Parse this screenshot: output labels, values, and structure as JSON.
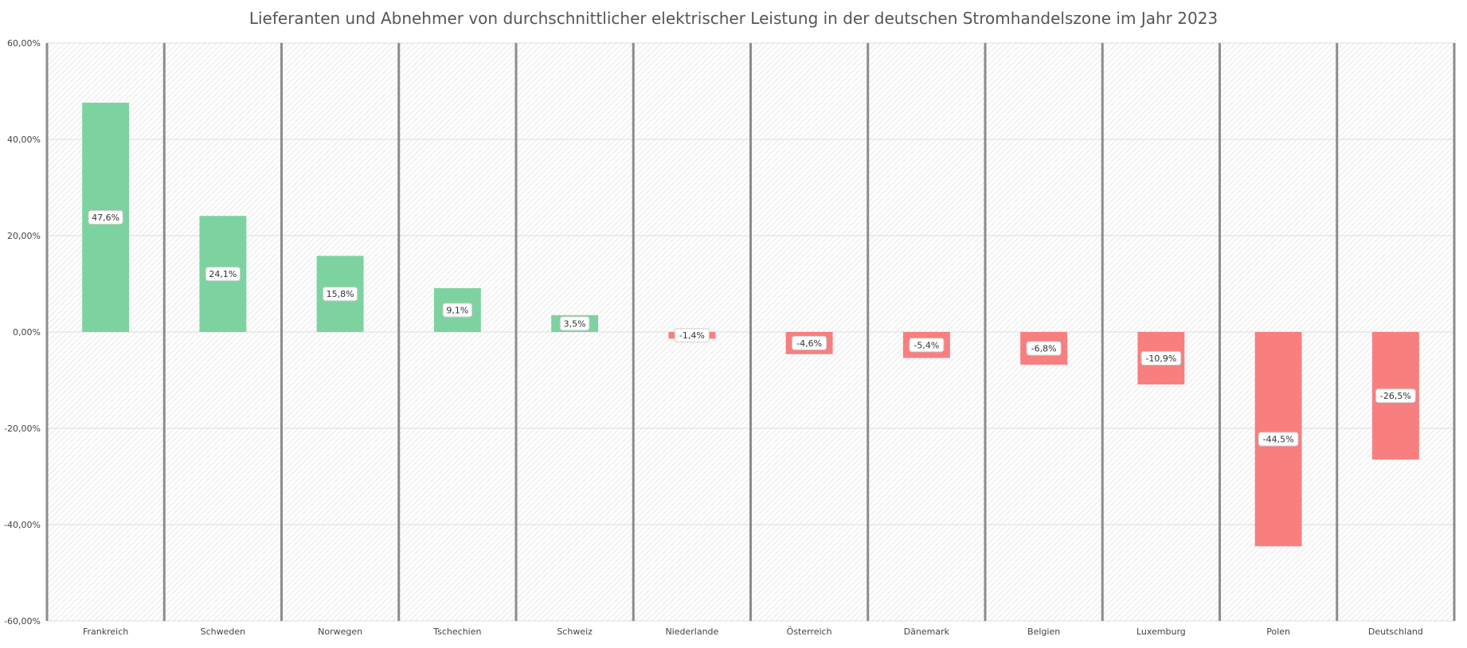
{
  "chart_data": {
    "type": "bar",
    "title": "Lieferanten und Abnehmer von durchschnittlicher  elektrischer Leistung in der deutschen Stromhandelszone  im Jahr 2023",
    "xlabel": "",
    "ylabel": "",
    "categories": [
      "Frankreich",
      "Schweden",
      "Norwegen",
      "Tschechien",
      "Schweiz",
      "Niederlande",
      "Österreich",
      "Dänemark",
      "Belgien",
      "Luxemburg",
      "Polen",
      "Deutschland"
    ],
    "values": [
      47.6,
      24.1,
      15.8,
      9.1,
      3.5,
      -1.4,
      -4.6,
      -5.4,
      -6.8,
      -10.9,
      -44.5,
      -26.5
    ],
    "data_labels": [
      "47,6%",
      "24,1%",
      "15,8%",
      "9,1%",
      "3,5%",
      "-1,4%",
      "-4,6%",
      "-5,4%",
      "-6,8%",
      "-10,9%",
      "-44,5%",
      "-26,5%"
    ],
    "ylim": [
      -60,
      60
    ],
    "yticks": [
      60,
      40,
      20,
      0,
      -20,
      -40,
      -60
    ],
    "ytick_labels": [
      "60,00%",
      "40,00%",
      "20,00%",
      "0,00%",
      "-20,00%",
      "-40,00%",
      "-60,00%"
    ],
    "grid": true,
    "legend": "none",
    "colors": {
      "positive": "#7dd3a0",
      "negative": "#f77f7f",
      "separator": "#8c8c8c",
      "gridline": "#dcdcdc",
      "hatch": "#e4e4e4"
    }
  }
}
